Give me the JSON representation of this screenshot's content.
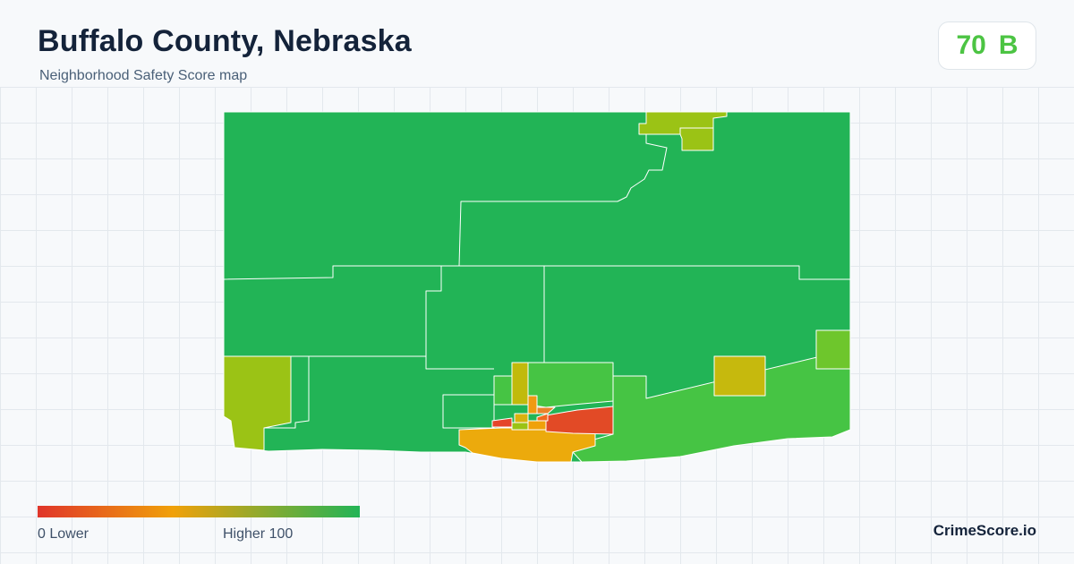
{
  "header": {
    "title": "Buffalo County, Nebraska",
    "subtitle": "Neighborhood Safety Score map"
  },
  "score": {
    "value": "70",
    "grade": "B",
    "color": "#4cc443"
  },
  "legend": {
    "min_label": "0  Lower",
    "max_label": "Higher  100",
    "colors": [
      "#e0352a",
      "#f0a10a",
      "#22b456"
    ]
  },
  "brand": "CrimeScore.io",
  "map": {
    "regions": [
      {
        "name": "north-main",
        "score": 96
      },
      {
        "name": "north-small-1",
        "score": 64
      },
      {
        "name": "north-small-2",
        "score": 64
      },
      {
        "name": "west-block",
        "score": 62
      },
      {
        "name": "east-square",
        "score": 56
      },
      {
        "name": "east-edge",
        "score": 70
      },
      {
        "name": "southeast",
        "score": 75
      },
      {
        "name": "kearney-south",
        "score": 45
      },
      {
        "name": "kearney-core-1",
        "score": 8
      },
      {
        "name": "kearney-core-2",
        "score": 10
      }
    ]
  }
}
